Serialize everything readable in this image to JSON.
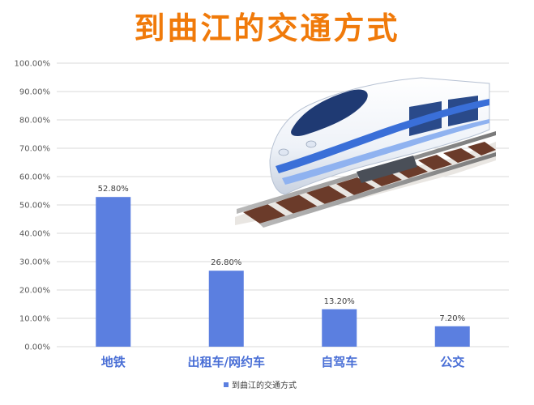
{
  "colors": {
    "title": "#f07a0a",
    "bar": "#5b7fe0",
    "category_label": "#4a6fd6",
    "grid": "#d9d9d9"
  },
  "chart_data": {
    "type": "bar",
    "title": "到曲江的交通方式",
    "categories": [
      "地铁",
      "出租车/网约车",
      "自驾车",
      "公交"
    ],
    "series": [
      {
        "name": "到曲江的交通方式",
        "values": [
          52.8,
          26.8,
          13.2,
          7.2
        ],
        "labels": [
          "52.80%",
          "26.80%",
          "13.20%",
          "7.20%"
        ]
      }
    ],
    "ylim": [
      0,
      100
    ],
    "y_ticks": [
      "0.00%",
      "10.00%",
      "20.00%",
      "30.00%",
      "40.00%",
      "50.00%",
      "60.00%",
      "70.00%",
      "80.00%",
      "90.00%",
      "100.00%"
    ],
    "grid": true,
    "legend": "bottom",
    "decoration": "high-speed-train-picture"
  }
}
